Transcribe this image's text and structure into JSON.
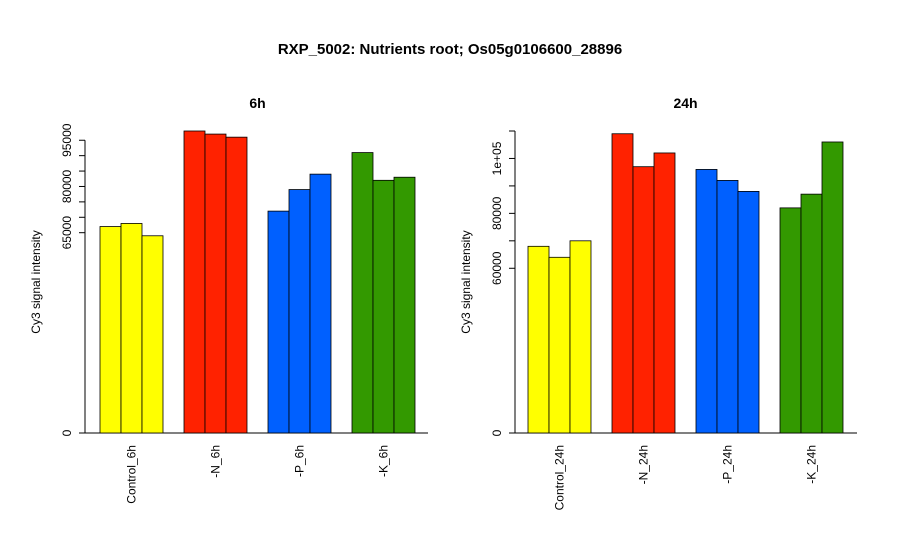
{
  "title": "RXP_5002: Nutrients root; Os05g0106600_28896",
  "chart_data": [
    {
      "type": "bar",
      "title": "6h",
      "ylabel": "Cy3 signal intensity",
      "categories": [
        "Control_6h",
        "-N_6h",
        "-P_6h",
        "-K_6h"
      ],
      "group_colors": [
        "#ffff00",
        "#ff2200",
        "#0060ff",
        "#339900"
      ],
      "series": [
        {
          "values": [
            67000,
            98000,
            72000,
            91000
          ]
        },
        {
          "values": [
            68000,
            97000,
            79000,
            82000
          ]
        },
        {
          "values": [
            64000,
            96000,
            84000,
            83000
          ]
        }
      ],
      "yticks": [
        0,
        65000,
        80000,
        95000
      ],
      "yticks_unlabeled": [
        70000,
        75000,
        85000,
        90000
      ],
      "ylim": [
        0,
        98000
      ]
    },
    {
      "type": "bar",
      "title": "24h",
      "ylabel": "Cy3 signal intensity",
      "categories": [
        "Control_24h",
        "-N_24h",
        "-P_24h",
        "-K_24h"
      ],
      "group_colors": [
        "#ffff00",
        "#ff2200",
        "#0060ff",
        "#339900"
      ],
      "series": [
        {
          "values": [
            68000,
            109000,
            96000,
            82000
          ]
        },
        {
          "values": [
            64000,
            97000,
            92000,
            87000
          ]
        },
        {
          "values": [
            70000,
            102000,
            88000,
            106000
          ]
        }
      ],
      "yticks": [
        0,
        60000,
        80000,
        100000
      ],
      "ytick_labels": [
        "0",
        "60000",
        "80000",
        "1e+05"
      ],
      "yticks_unlabeled": [
        70000,
        90000,
        110000
      ],
      "ylim": [
        0,
        110000
      ]
    }
  ]
}
